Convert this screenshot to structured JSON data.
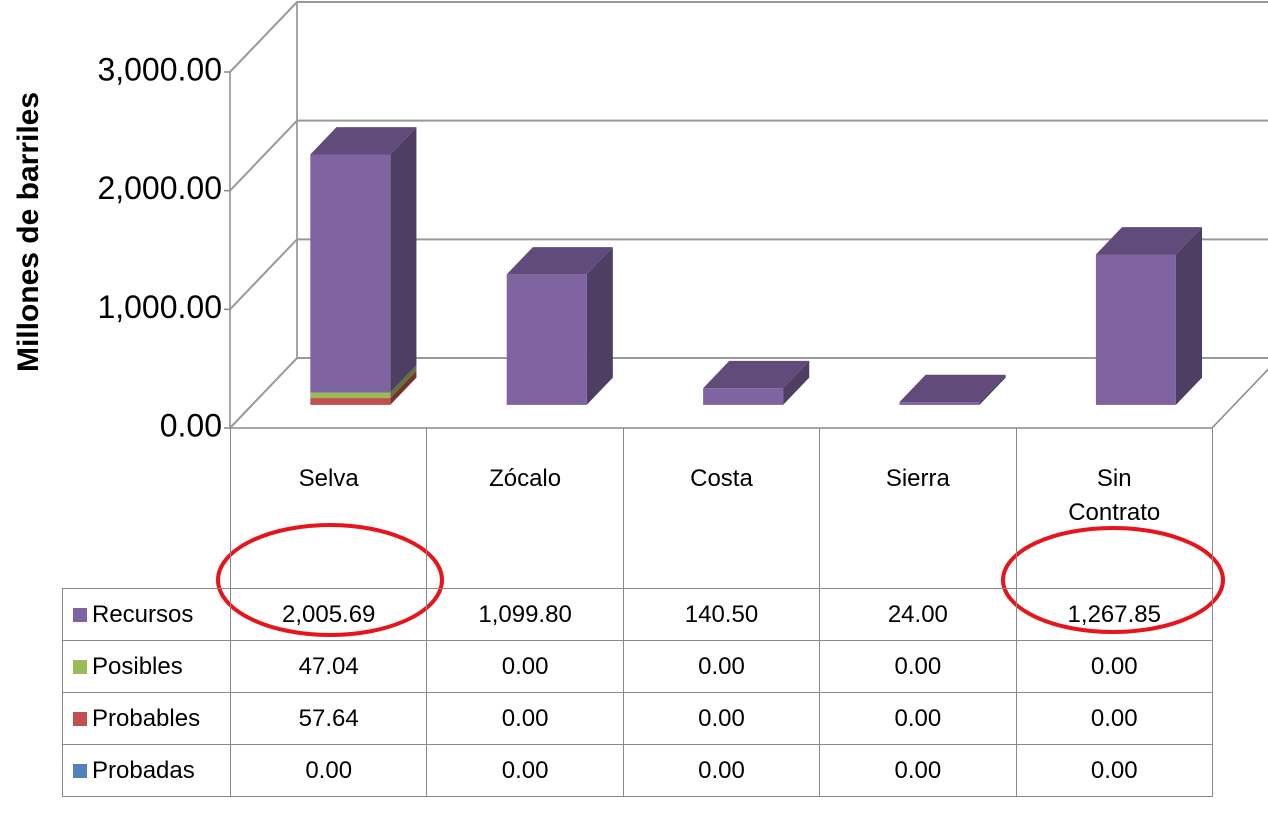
{
  "chart_data": {
    "type": "bar3d",
    "y_label": "Millones de barriles",
    "categories": [
      "Selva",
      "Zócalo",
      "Costa",
      "Sierra",
      "Sin Contrato"
    ],
    "series": [
      {
        "name": "Recursos",
        "color": "#8064a2",
        "values": [
          2005.69,
          1099.8,
          140.5,
          24.0,
          1267.85
        ],
        "value_labels": [
          "2,005.69",
          "1,099.80",
          "140.50",
          "24.00",
          "1,267.85"
        ]
      },
      {
        "name": "Posibles",
        "color": "#9bbb59",
        "values": [
          47.04,
          0,
          0,
          0,
          0
        ],
        "value_labels": [
          "47.04",
          "0.00",
          "0.00",
          "0.00",
          "0.00"
        ]
      },
      {
        "name": "Probables",
        "color": "#c0504d",
        "values": [
          57.64,
          0,
          0,
          0,
          0
        ],
        "value_labels": [
          "57.64",
          "0.00",
          "0.00",
          "0.00",
          "0.00"
        ]
      },
      {
        "name": "Probadas",
        "color": "#4f81bd",
        "values": [
          0,
          0,
          0,
          0,
          0
        ],
        "value_labels": [
          "0.00",
          "0.00",
          "0.00",
          "0.00",
          "0.00"
        ]
      }
    ],
    "stacked": true,
    "ylim": [
      0,
      3000
    ],
    "yticks": [
      {
        "value": 0,
        "label": "0.00"
      },
      {
        "value": 1000,
        "label": "1,000.00"
      },
      {
        "value": 2000,
        "label": "2,000.00"
      },
      {
        "value": 3000,
        "label": "3,000.00"
      }
    ],
    "grid": true,
    "data_table": true
  }
}
